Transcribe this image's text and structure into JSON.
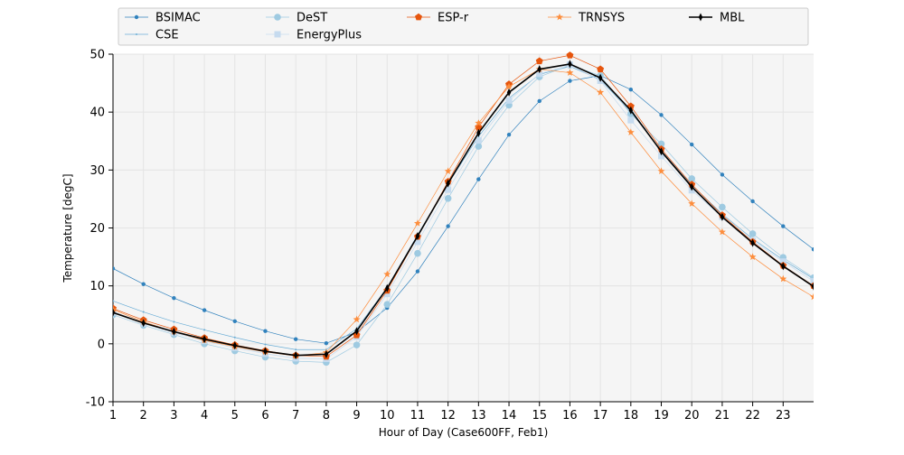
{
  "chart_data": {
    "type": "line",
    "xlabel": "Hour of Day (Case600FF, Feb1)",
    "ylabel": "Temperature [degC]",
    "xlim": [
      1,
      24
    ],
    "ylim": [
      -10,
      50
    ],
    "x_ticks": [
      1,
      2,
      3,
      4,
      5,
      6,
      7,
      8,
      9,
      10,
      11,
      12,
      13,
      14,
      15,
      16,
      17,
      18,
      19,
      20,
      21,
      22,
      23
    ],
    "y_ticks": [
      -10,
      0,
      10,
      20,
      30,
      40,
      50
    ],
    "grid": true,
    "legend_position": "top",
    "x": [
      1,
      2,
      3,
      4,
      5,
      6,
      7,
      8,
      9,
      10,
      11,
      12,
      13,
      14,
      15,
      16,
      17,
      18,
      19,
      20,
      21,
      22,
      23,
      24
    ],
    "series": [
      {
        "name": "BSIMAC",
        "color": "#3182bd",
        "marker": "circle-small",
        "values": [
          13.0,
          10.3,
          7.9,
          5.8,
          3.9,
          2.2,
          0.8,
          0.1,
          2.0,
          6.2,
          12.5,
          20.3,
          28.4,
          36.1,
          41.9,
          45.4,
          46.3,
          43.9,
          39.5,
          34.4,
          29.2,
          24.6,
          20.3,
          16.3
        ]
      },
      {
        "name": "CSE",
        "color": "#6baed6",
        "marker": "dot",
        "values": [
          7.4,
          5.5,
          3.8,
          2.4,
          1.1,
          -0.1,
          -1.0,
          -1.0,
          2.6,
          9.7,
          18.8,
          27.6,
          35.8,
          42.4,
          46.5,
          47.9,
          45.6,
          40.0,
          33.4,
          27.4,
          22.4,
          18.1,
          14.5,
          11.2
        ]
      },
      {
        "name": "DeST",
        "color": "#9ecae1",
        "marker": "circle",
        "values": [
          5.0,
          3.2,
          1.6,
          0.0,
          -1.2,
          -2.3,
          -3.0,
          -3.2,
          -0.2,
          6.8,
          15.6,
          25.1,
          34.1,
          41.2,
          46.1,
          48.1,
          46.3,
          39.7,
          34.5,
          28.5,
          23.6,
          19.0,
          14.9,
          11.4
        ]
      },
      {
        "name": "EnergyPlus",
        "color": "#c6dbef",
        "marker": "square",
        "values": [
          5.4,
          3.5,
          1.9,
          0.5,
          -0.7,
          -1.7,
          -2.5,
          -2.6,
          1.2,
          8.6,
          17.6,
          26.6,
          35.1,
          42.0,
          46.6,
          48.2,
          45.4,
          38.6,
          32.4,
          26.5,
          21.9,
          17.8,
          14.2,
          10.8
        ]
      },
      {
        "name": "ESP-r",
        "color": "#e6550d",
        "marker": "pentagon",
        "values": [
          6.1,
          4.1,
          2.5,
          1.0,
          -0.2,
          -1.2,
          -2.0,
          -2.2,
          1.5,
          9.2,
          18.5,
          28.0,
          37.4,
          44.8,
          48.8,
          49.8,
          47.4,
          41.0,
          33.6,
          27.5,
          22.2,
          17.6,
          13.5,
          10.0
        ]
      },
      {
        "name": "TRNSYS",
        "color": "#fd8d3c",
        "marker": "star",
        "values": [
          5.9,
          3.8,
          2.1,
          0.6,
          -0.5,
          -1.4,
          -2.1,
          -1.5,
          4.2,
          12.0,
          20.8,
          29.8,
          38.1,
          44.4,
          47.4,
          46.8,
          43.4,
          36.5,
          29.8,
          24.2,
          19.3,
          15.0,
          11.2,
          8.1
        ]
      },
      {
        "name": "MBL",
        "color": "#000000",
        "marker": "thin-diamond",
        "values": [
          5.4,
          3.6,
          2.1,
          0.8,
          -0.3,
          -1.3,
          -2.0,
          -1.8,
          2.2,
          9.6,
          18.6,
          27.7,
          36.4,
          43.4,
          47.4,
          48.3,
          45.9,
          40.3,
          33.2,
          27.1,
          21.9,
          17.4,
          13.4,
          9.9
        ]
      }
    ],
    "colors": {
      "plot_background": "#f5f5f5",
      "grid": "#e4e4e4",
      "legend_background": "#f5f5f5",
      "legend_border": "#cccccc"
    }
  }
}
